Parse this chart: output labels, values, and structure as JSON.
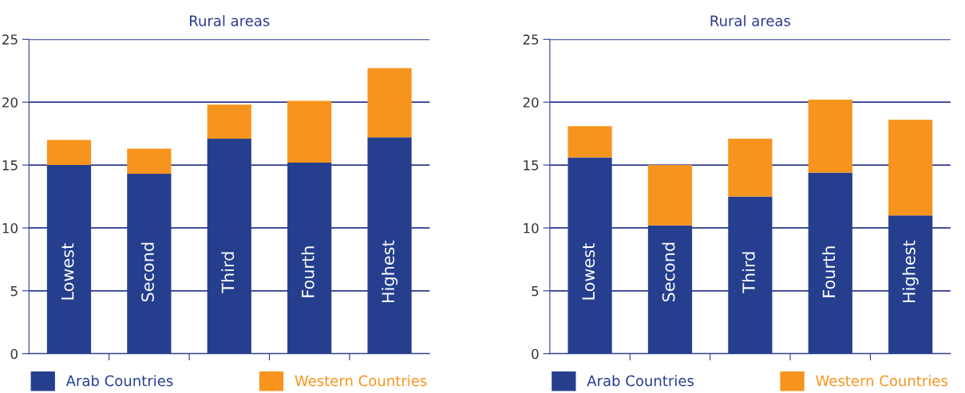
{
  "chart_data": [
    {
      "type": "bar",
      "title": "Rural areas",
      "stacked": true,
      "categories": [
        "Lowest",
        "Second",
        "Third",
        "Fourth",
        "Highest"
      ],
      "ylim": [
        0,
        25
      ],
      "yticks": [
        0,
        5,
        10,
        15,
        20,
        25
      ],
      "grid": "y",
      "legend": "bottom",
      "series": [
        {
          "name": "Arab Countries",
          "color": "#253f8e",
          "values": [
            15.0,
            14.3,
            17.1,
            15.2,
            17.2
          ]
        },
        {
          "name": "Western Countries",
          "color": "#f7941d",
          "values": [
            2.0,
            2.0,
            2.7,
            4.9,
            5.5
          ]
        }
      ]
    },
    {
      "type": "bar",
      "title": "Rural areas",
      "stacked": true,
      "categories": [
        "Lowest",
        "Second",
        "Third",
        "Fourth",
        "Highest"
      ],
      "ylim": [
        0,
        25
      ],
      "yticks": [
        0,
        5,
        10,
        15,
        20,
        25
      ],
      "grid": "y",
      "legend": "bottom",
      "series": [
        {
          "name": "Arab Countries",
          "color": "#253f8e",
          "values": [
            15.6,
            10.2,
            12.5,
            14.4,
            11.0
          ]
        },
        {
          "name": "Western Countries",
          "color": "#f7941d",
          "values": [
            2.5,
            4.8,
            4.6,
            5.8,
            7.6
          ]
        }
      ]
    }
  ]
}
